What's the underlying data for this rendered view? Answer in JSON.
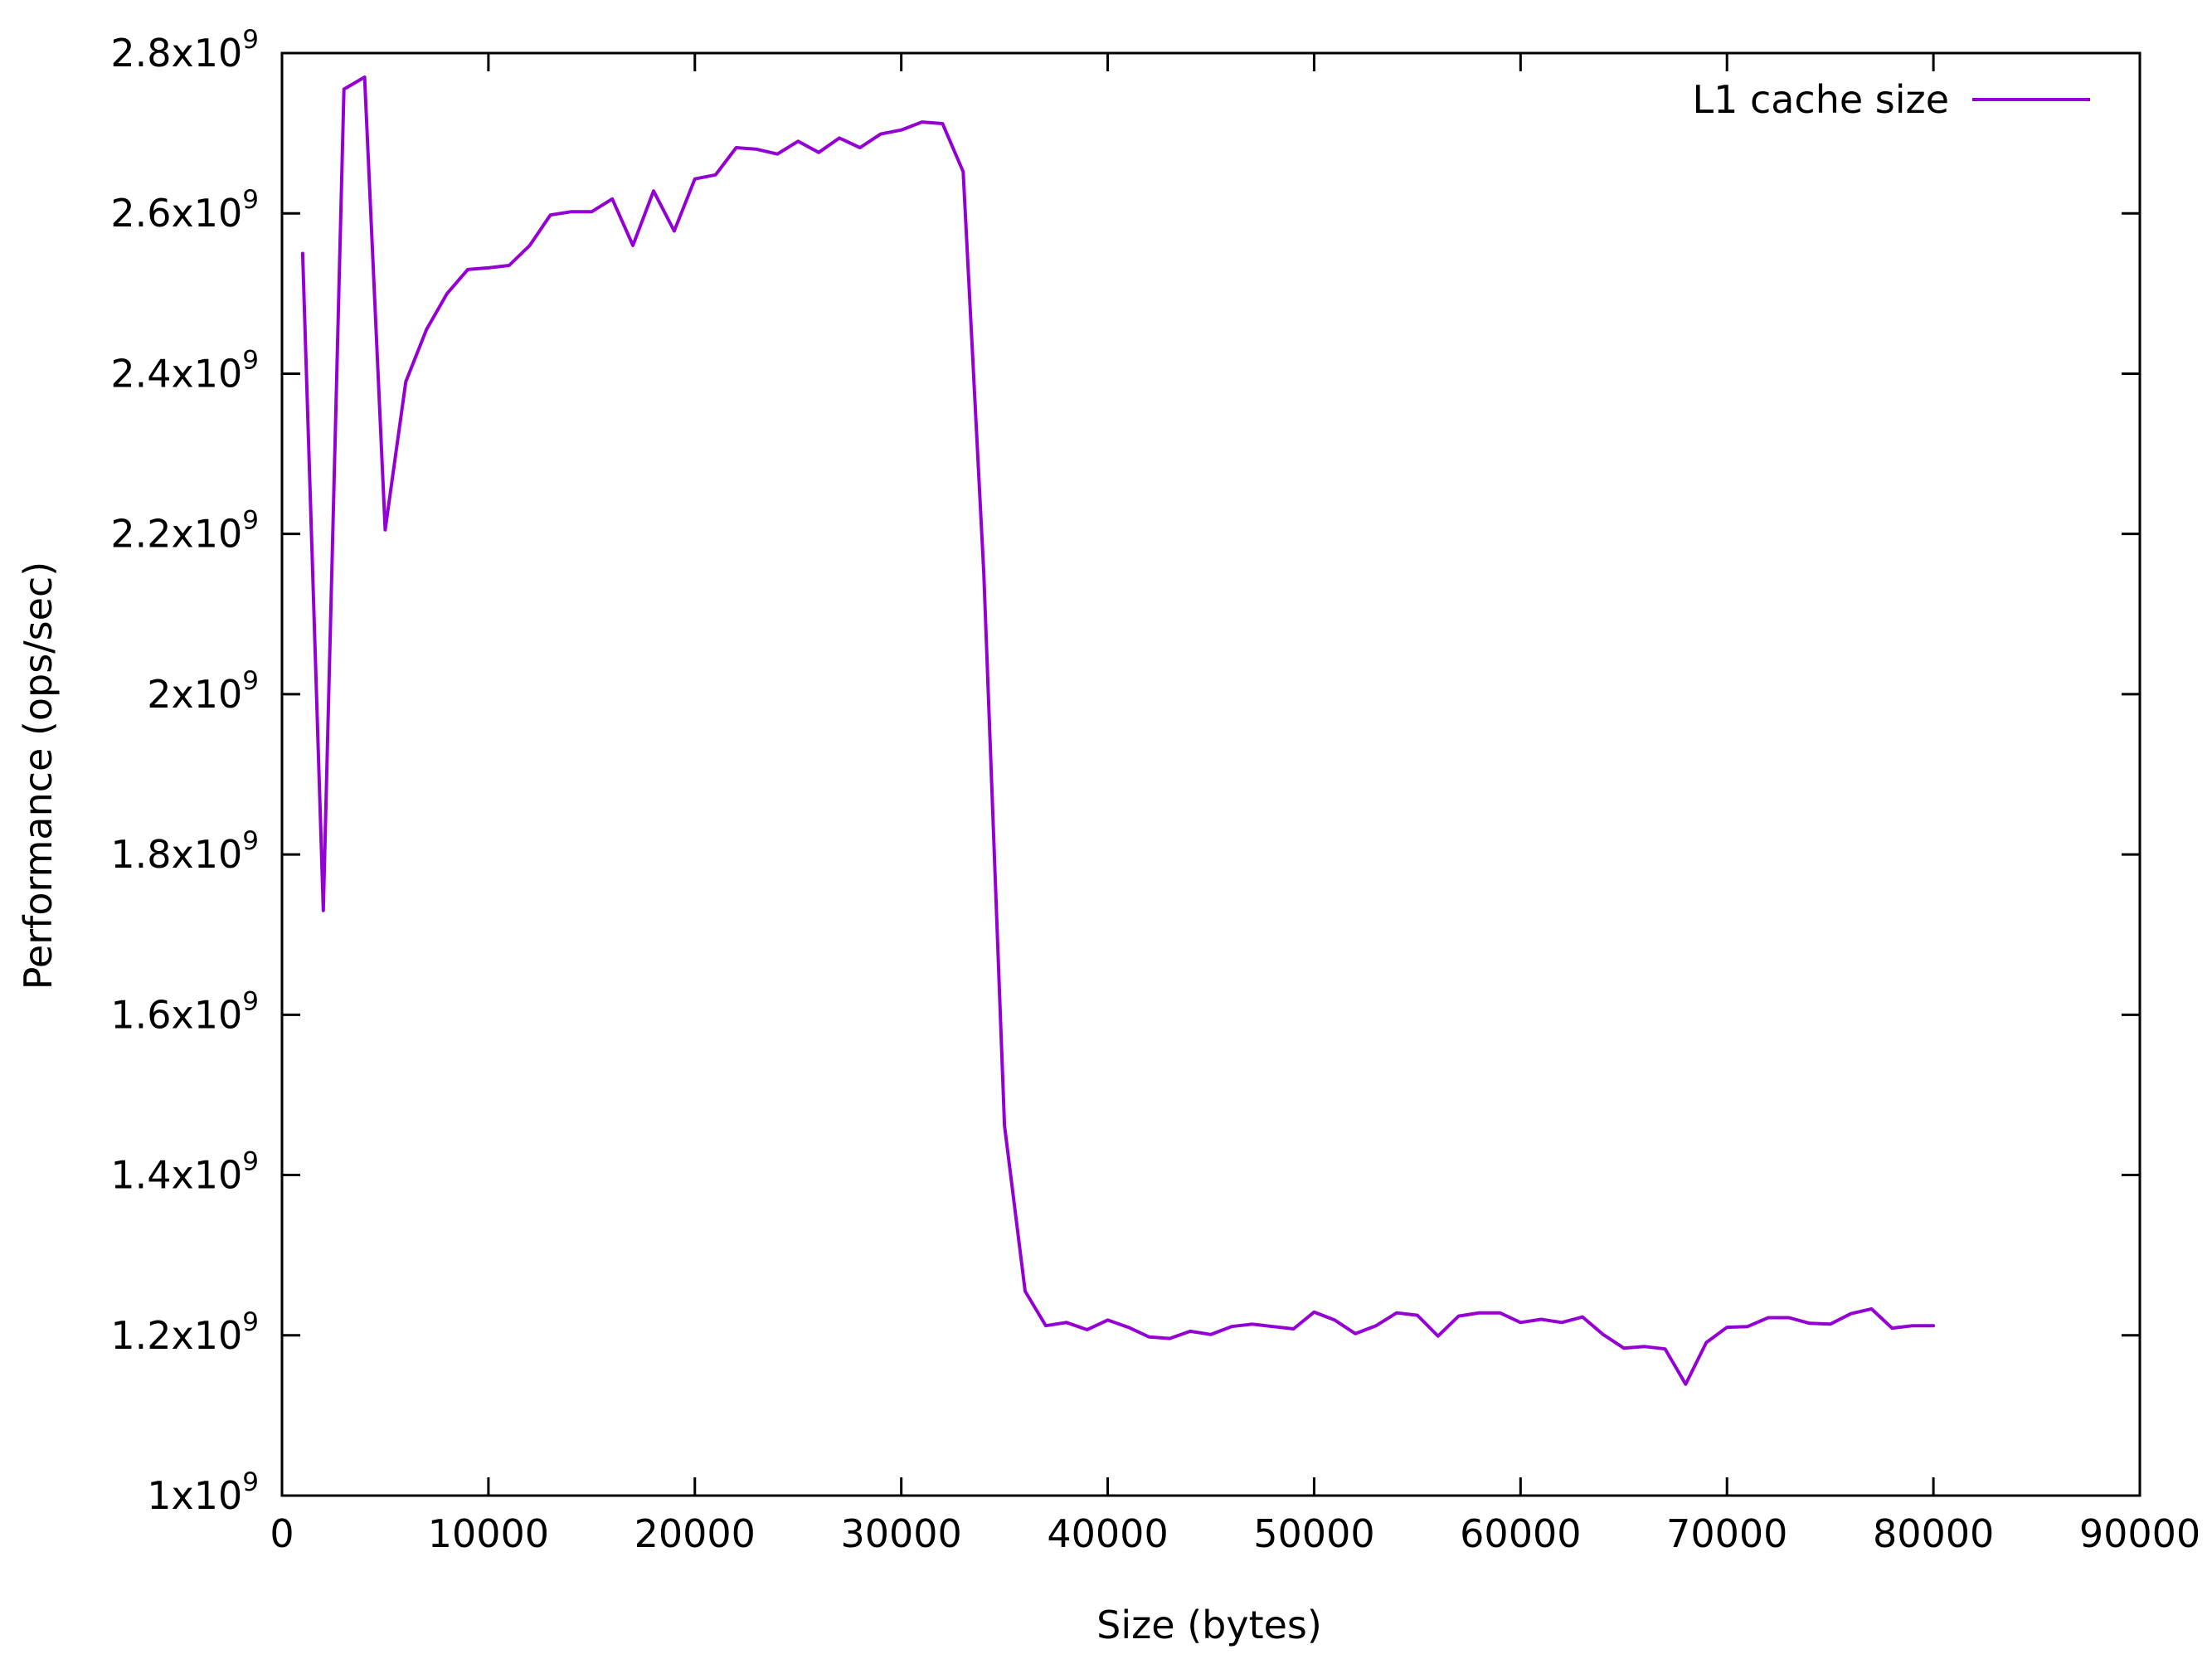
{
  "chart_data": {
    "type": "line",
    "title": "",
    "xlabel": "Size (bytes)",
    "ylabel": "Performance (ops/sec)",
    "xlim": [
      0,
      90000
    ],
    "ylim": [
      1000000000,
      2800000000
    ],
    "grid": false,
    "legend_position": "top-right",
    "x_ticks": [
      {
        "value": 0,
        "label": "0"
      },
      {
        "value": 10000,
        "label": "10000"
      },
      {
        "value": 20000,
        "label": "20000"
      },
      {
        "value": 30000,
        "label": "30000"
      },
      {
        "value": 40000,
        "label": "40000"
      },
      {
        "value": 50000,
        "label": "50000"
      },
      {
        "value": 60000,
        "label": "60000"
      },
      {
        "value": 70000,
        "label": "70000"
      },
      {
        "value": 80000,
        "label": "80000"
      },
      {
        "value": 90000,
        "label": "90000"
      }
    ],
    "y_ticks": [
      {
        "value": 1000000000,
        "mantissa": "1",
        "exp": "9"
      },
      {
        "value": 1200000000,
        "mantissa": "1.2",
        "exp": "9"
      },
      {
        "value": 1400000000,
        "mantissa": "1.4",
        "exp": "9"
      },
      {
        "value": 1600000000,
        "mantissa": "1.6",
        "exp": "9"
      },
      {
        "value": 1800000000,
        "mantissa": "1.8",
        "exp": "9"
      },
      {
        "value": 2000000000,
        "mantissa": "2",
        "exp": "9"
      },
      {
        "value": 2200000000,
        "mantissa": "2.2",
        "exp": "9"
      },
      {
        "value": 2400000000,
        "mantissa": "2.4",
        "exp": "9"
      },
      {
        "value": 2600000000,
        "mantissa": "2.6",
        "exp": "9"
      },
      {
        "value": 2800000000,
        "mantissa": "2.8",
        "exp": "9"
      }
    ],
    "series": [
      {
        "name": "L1 cache size",
        "color": "#9400d3",
        "x": [
          1000,
          2000,
          3000,
          4000,
          5000,
          6000,
          7000,
          8000,
          9000,
          10000,
          11000,
          12000,
          13000,
          14000,
          15000,
          16000,
          17000,
          18000,
          19000,
          20000,
          21000,
          22000,
          23000,
          24000,
          25000,
          26000,
          27000,
          28000,
          29000,
          30000,
          31000,
          32000,
          33000,
          34000,
          35000,
          36000,
          37000,
          38000,
          39000,
          40000,
          41000,
          42000,
          43000,
          44000,
          45000,
          46000,
          47000,
          48000,
          49000,
          50000,
          51000,
          52000,
          53000,
          54000,
          55000,
          56000,
          57000,
          58000,
          59000,
          60000,
          61000,
          62000,
          63000,
          64000,
          65000,
          66000,
          67000,
          68000,
          69000,
          70000,
          71000,
          72000,
          73000,
          74000,
          75000,
          76000,
          77000,
          78000,
          79000,
          80000
        ],
        "y": [
          2550000000,
          1730000000,
          2755000000,
          2770000000,
          2205000000,
          2390000000,
          2455000000,
          2500000000,
          2530000000,
          2532000000,
          2535000000,
          2560000000,
          2598000000,
          2602000000,
          2602000000,
          2618000000,
          2560000000,
          2628000000,
          2578000000,
          2643000000,
          2648000000,
          2682000000,
          2680000000,
          2674000000,
          2690000000,
          2676000000,
          2694000000,
          2682000000,
          2699000000,
          2704000000,
          2714000000,
          2712000000,
          2652000000,
          2150000000,
          1462000000,
          1255000000,
          1212000000,
          1216000000,
          1207000000,
          1219000000,
          1210000000,
          1198000000,
          1196000000,
          1205000000,
          1201000000,
          1211000000,
          1214000000,
          1211000000,
          1208000000,
          1229000000,
          1219000000,
          1202000000,
          1212000000,
          1228000000,
          1225000000,
          1199000000,
          1224000000,
          1228000000,
          1228000000,
          1216000000,
          1220000000,
          1216000000,
          1223000000,
          1201000000,
          1184000000,
          1186000000,
          1183000000,
          1139000000,
          1191000000,
          1210000000,
          1211000000,
          1222000000,
          1222000000,
          1215000000,
          1214000000,
          1227000000,
          1233000000,
          1209000000,
          1212000000,
          1212000000
        ]
      }
    ]
  }
}
